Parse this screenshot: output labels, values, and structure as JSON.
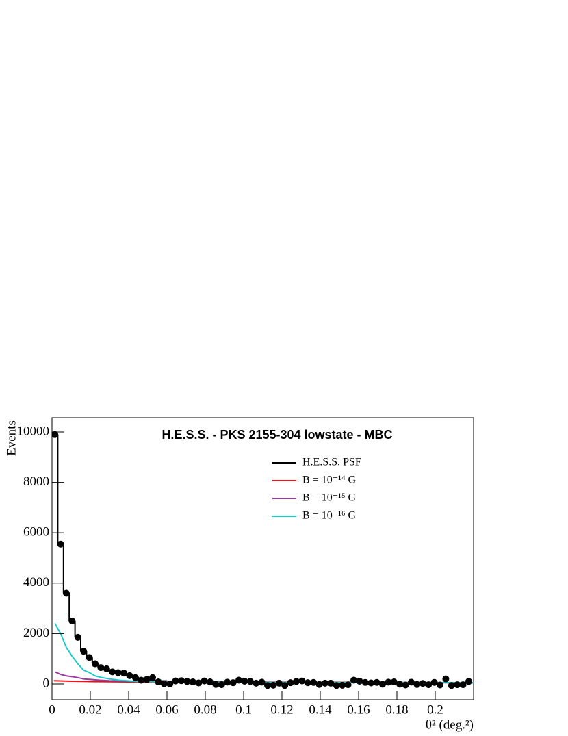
{
  "chart_data": {
    "type": "histogram",
    "title": "H.E.S.S. - PKS 2155-304 lowstate - MBC",
    "x_label": "θ² (deg.²)",
    "y_label": "Events",
    "xlim": [
      0,
      0.22
    ],
    "ylim": [
      -625,
      10570
    ],
    "xticks": [
      0,
      0.02,
      0.04,
      0.06,
      0.08,
      0.1,
      0.12,
      0.14,
      0.16,
      0.18,
      0.2
    ],
    "yticks": [
      0,
      2000,
      4000,
      6000,
      8000,
      10000
    ],
    "marker_color": "#000000",
    "bins": [
      0,
      0.003,
      0.006,
      0.009,
      0.012,
      0.015,
      0.018,
      0.021,
      0.024,
      0.027,
      0.03,
      0.033,
      0.036,
      0.039,
      0.042,
      0.045,
      0.048,
      0.051,
      0.054,
      0.057,
      0.06,
      0.063,
      0.066,
      0.069,
      0.072,
      0.075,
      0.078,
      0.081,
      0.084,
      0.087,
      0.09,
      0.093,
      0.096,
      0.099,
      0.102,
      0.105,
      0.108,
      0.111,
      0.114,
      0.117,
      0.12,
      0.123,
      0.126,
      0.129,
      0.132,
      0.135,
      0.138,
      0.141,
      0.144,
      0.147,
      0.15,
      0.153,
      0.156,
      0.159,
      0.162,
      0.165,
      0.168,
      0.171,
      0.174,
      0.177,
      0.18,
      0.183,
      0.186,
      0.189,
      0.192,
      0.195,
      0.198,
      0.201,
      0.204,
      0.207,
      0.21,
      0.213,
      0.216,
      0.219
    ],
    "counts": [
      9900,
      5550,
      3600,
      2500,
      1850,
      1300,
      1050,
      800,
      650,
      600,
      480,
      450,
      430,
      330,
      250,
      150,
      180,
      250,
      80,
      10,
      0,
      120,
      130,
      100,
      80,
      40,
      120,
      80,
      -20,
      -30,
      70,
      50,
      150,
      110,
      100,
      30,
      70,
      -60,
      -50,
      30,
      -60,
      50,
      100,
      120,
      50,
      60,
      -20,
      30,
      30,
      -60,
      -50,
      -30,
      150,
      110,
      60,
      40,
      60,
      -10,
      70,
      80,
      -10,
      -40,
      70,
      -20,
      20,
      -30,
      60,
      -40,
      200,
      -60,
      -30,
      -30,
      100
    ],
    "series": [
      {
        "name": "H.E.S.S. PSF",
        "color": "#000000",
        "step": true,
        "values": [
          9900,
          5550,
          3600,
          2500,
          1850,
          1300,
          1050,
          820,
          660,
          560,
          470,
          420,
          380,
          330,
          280,
          230,
          190,
          160,
          140,
          120,
          110,
          100,
          95,
          90,
          88,
          86,
          84,
          82,
          80,
          79,
          78,
          77,
          76,
          75,
          74,
          73,
          72,
          71,
          70,
          70,
          69,
          68,
          68,
          67,
          66,
          66,
          65,
          65,
          64,
          64,
          63,
          63,
          62,
          62,
          61,
          61,
          60,
          60,
          60,
          59,
          59,
          58,
          58,
          58,
          57,
          57,
          57,
          56,
          56,
          56,
          55,
          55,
          55
        ]
      },
      {
        "name": "B = 10⁻¹⁴ G",
        "color": "#e8141c",
        "x": [
          0.001,
          0.01,
          0.02,
          0.04,
          0.08,
          0.12,
          0.16,
          0.2,
          0.22
        ],
        "values": [
          130,
          110,
          95,
          80,
          70,
          62,
          56,
          52,
          50
        ]
      },
      {
        "name": "B = 10⁻¹⁵ G",
        "color": "#9b3b9e",
        "x": [
          0.0015,
          0.0045,
          0.0075,
          0.0105,
          0.0135,
          0.0165,
          0.02,
          0.025,
          0.03,
          0.04,
          0.06,
          0.1,
          0.16,
          0.22
        ],
        "values": [
          480,
          380,
          320,
          290,
          250,
          200,
          180,
          150,
          130,
          110,
          85,
          65,
          55,
          50
        ]
      },
      {
        "name": "B = 10⁻¹⁶ G",
        "color": "#1ec8c8",
        "x": [
          0.0015,
          0.0045,
          0.0075,
          0.0105,
          0.0135,
          0.0165,
          0.0195,
          0.0225,
          0.0255,
          0.03,
          0.035,
          0.045,
          0.06,
          0.1,
          0.16,
          0.22
        ],
        "values": [
          2400,
          2000,
          1450,
          1100,
          800,
          550,
          450,
          320,
          260,
          200,
          150,
          100,
          80,
          60,
          55,
          50
        ]
      }
    ]
  }
}
